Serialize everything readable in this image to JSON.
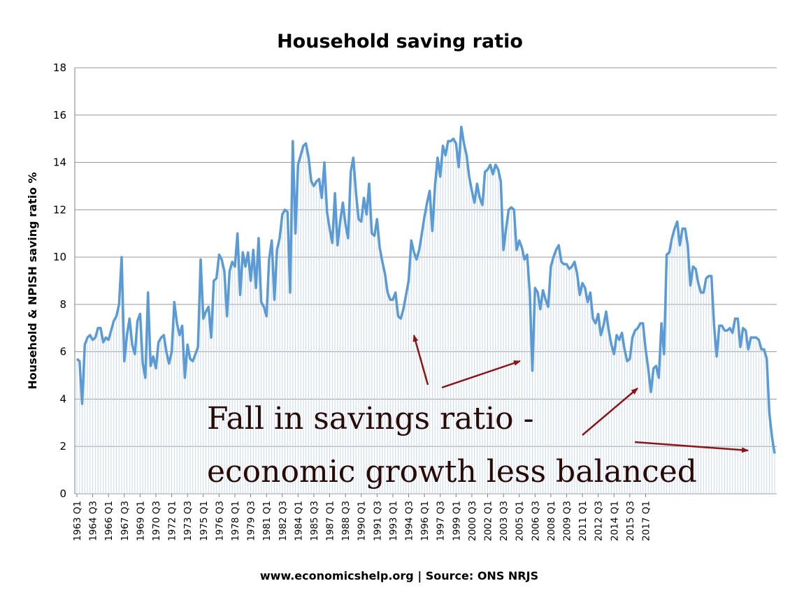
{
  "colors": {
    "line": "#5b9bd5",
    "drop_lines": "#c8d8ec",
    "grid": "#9a9a9a",
    "arrow": "#8b1414",
    "annotation_text": "#2a0a05"
  },
  "chart_data": {
    "type": "line",
    "title": "Household saving ratio",
    "ylabel": "Household & NPISH saving ratio %",
    "xlabel": "",
    "ylim": [
      0,
      18
    ],
    "yticks": [
      0,
      2,
      4,
      6,
      8,
      10,
      12,
      14,
      16,
      18
    ],
    "grid": true,
    "legend": "none",
    "x_start": "1963 Q1",
    "x_end": "2017 Q1",
    "x_tick_labels": [
      "1963 Q1",
      "1964 Q3",
      "1966 Q1",
      "1967 Q3",
      "1969 Q1",
      "1970 Q3",
      "1972 Q1",
      "1973 Q3",
      "1975 Q1",
      "1976 Q3",
      "1978 Q1",
      "1979 Q3",
      "1981 Q1",
      "1982 Q3",
      "1984 Q1",
      "1985 Q3",
      "1987 Q1",
      "1988 Q3",
      "1990 Q1",
      "1991 Q3",
      "1993 Q1",
      "1994 Q3",
      "1996 Q1",
      "1997 Q3",
      "1999 Q1",
      "2000 Q3",
      "2002 Q1",
      "2003 Q3",
      "2005 Q1",
      "2006 Q3",
      "2008 Q1",
      "2009 Q3",
      "2011 Q1",
      "2012 Q3",
      "2014 Q1",
      "2015 Q3",
      "2017 Q1"
    ],
    "series": [
      {
        "values": [
          5.7,
          5.6,
          3.8,
          6.3,
          6.6,
          6.7,
          6.5,
          6.6,
          7.0,
          7.0,
          6.4,
          6.6,
          6.5,
          6.9,
          7.3,
          7.5,
          8.0,
          10.0,
          5.6,
          6.7,
          7.4,
          6.3,
          5.9,
          7.3,
          7.6,
          5.5,
          4.9,
          8.5,
          5.4,
          5.8,
          5.3,
          6.4,
          6.6,
          6.7,
          6.0,
          5.5,
          6.0,
          8.1,
          7.2,
          6.7,
          7.1,
          4.9,
          6.3,
          5.7,
          5.6,
          5.9,
          6.2,
          9.9,
          7.4,
          7.7,
          7.9,
          6.6,
          9.0,
          9.1,
          10.1,
          9.9,
          9.4,
          7.5,
          9.4,
          9.8,
          9.6,
          11.0,
          8.4,
          10.2,
          9.6,
          10.2,
          9.0,
          10.3,
          8.7,
          10.8,
          8.1,
          7.9,
          7.5,
          9.9,
          10.7,
          8.2,
          10.3,
          10.8,
          11.8,
          12.0,
          11.9,
          8.5,
          14.9,
          11.0,
          13.9,
          14.3,
          14.7,
          14.8,
          14.2,
          13.2,
          13.0,
          13.2,
          13.3,
          12.5,
          14.0,
          11.9,
          11.2,
          10.6,
          12.7,
          10.5,
          11.5,
          12.3,
          11.4,
          10.8,
          13.6,
          14.2,
          12.7,
          11.6,
          11.5,
          12.5,
          11.8,
          13.1,
          11.0,
          10.9,
          11.6,
          10.4,
          9.8,
          9.3,
          8.5,
          8.2,
          8.2,
          8.5,
          7.5,
          7.4,
          7.8,
          8.4,
          9.0,
          10.7,
          10.2,
          9.9,
          10.3,
          11.0,
          11.7,
          12.3,
          12.8,
          11.1,
          13.0,
          14.2,
          13.4,
          14.7,
          14.3,
          14.9,
          14.9,
          15.0,
          14.8,
          13.8,
          15.5,
          14.8,
          14.3,
          13.4,
          12.8,
          12.3,
          13.1,
          12.5,
          12.2,
          13.6,
          13.7,
          13.9,
          13.5,
          13.9,
          13.7,
          13.2,
          10.3,
          11.2,
          12.0,
          12.1,
          12.0,
          10.3,
          10.7,
          10.4,
          9.9,
          10.1,
          8.5,
          5.2,
          8.7,
          8.5,
          7.8,
          8.6,
          8.2,
          7.9,
          9.6,
          10.0,
          10.3,
          10.5,
          9.8,
          9.7,
          9.7,
          9.5,
          9.6,
          9.8,
          9.3,
          8.4,
          8.9,
          8.7,
          8.1,
          8.5,
          7.4,
          7.2,
          7.6,
          6.7,
          7.1,
          7.7,
          6.9,
          6.3,
          5.9,
          6.7,
          6.5,
          6.8,
          6.1,
          5.6,
          5.7,
          6.6,
          6.9,
          7.0,
          7.2,
          7.2,
          6.1,
          5.3,
          4.3,
          5.3,
          5.4,
          4.9,
          7.2,
          5.9,
          10.1,
          10.2,
          10.8,
          11.2,
          11.5,
          10.5,
          11.2,
          11.2,
          10.5,
          8.8,
          9.6,
          9.5,
          8.9,
          8.5,
          8.5,
          9.1,
          9.2,
          9.2,
          7.1,
          5.8,
          7.1,
          7.1,
          6.9,
          6.9,
          7.0,
          6.8,
          7.4,
          7.4,
          6.2,
          7.0,
          6.9,
          6.1,
          6.6,
          6.6,
          6.6,
          6.5,
          6.1,
          6.1,
          5.7,
          3.4,
          2.4,
          1.7
        ]
      }
    ],
    "annotations": {
      "line1": "Fall in savings ratio -",
      "line2": "economic growth less balanced"
    },
    "footer": "www.economicshelp.org | Source: ONS NRJS"
  }
}
